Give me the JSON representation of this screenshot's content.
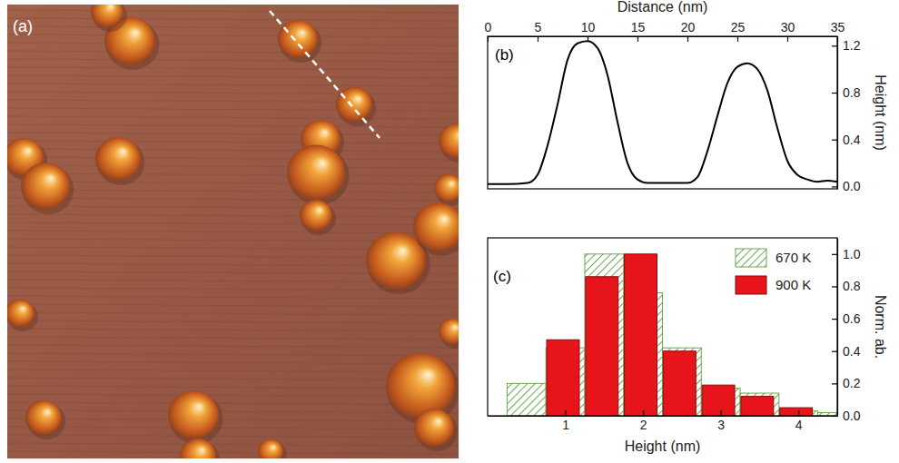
{
  "chart_data": [
    {
      "type": "image",
      "label": "(a)"
    },
    {
      "type": "line",
      "label": "(b)",
      "x_label": "Distance (nm)",
      "y_label": "Height (nm)",
      "x": [
        0,
        2,
        4,
        5,
        6,
        7,
        8,
        9,
        10,
        11,
        12,
        13,
        14,
        15,
        16,
        18,
        20,
        21,
        22,
        23,
        24,
        25,
        26,
        27,
        28,
        29,
        30,
        31,
        32,
        33,
        34,
        35
      ],
      "values": [
        0.02,
        0.02,
        0.03,
        0.1,
        0.35,
        0.7,
        1.08,
        1.22,
        1.24,
        1.18,
        0.95,
        0.55,
        0.2,
        0.06,
        0.03,
        0.03,
        0.03,
        0.08,
        0.3,
        0.6,
        0.88,
        1.02,
        1.05,
        1.0,
        0.82,
        0.5,
        0.22,
        0.1,
        0.06,
        0.04,
        0.05,
        0.04
      ],
      "color": "#000000",
      "xlim": [
        0,
        35
      ],
      "xticks": [
        0,
        5,
        10,
        15,
        20,
        25,
        30,
        35
      ],
      "ylim": [
        -0.02,
        1.28
      ],
      "yticks": [
        {
          "value": 0,
          "label": "0.0"
        },
        {
          "value": 0.4,
          "label": "0.4"
        },
        {
          "value": 0.8,
          "label": "0.8"
        },
        {
          "value": 1.2,
          "label": "1.2"
        }
      ]
    },
    {
      "type": "histogram",
      "label": "(c)",
      "x_label": "Height (nm)",
      "y_label": "Norm. ab.",
      "bins": [
        0.25,
        0.75,
        1.25,
        1.75,
        2.25,
        2.75,
        3.25,
        3.75,
        4.25,
        4.75
      ],
      "series": [
        {
          "name": "670 K",
          "color": "#6aa84f",
          "marker": "hatch",
          "values": [
            0.2,
            0.42,
            1.0,
            0.76,
            0.42,
            0.17,
            0.14,
            0.03,
            0.02
          ]
        },
        {
          "name": "900 K",
          "color": "#e8141c",
          "marker": "solid",
          "values": [
            0,
            0.47,
            0.86,
            1.0,
            0.4,
            0.19,
            0.12,
            0.05,
            0
          ]
        }
      ],
      "legend": "upper right",
      "xlim": [
        0,
        4.5
      ],
      "xticks": [
        1,
        2,
        3,
        4
      ],
      "ylim": [
        0,
        1.1
      ],
      "yticks": [
        {
          "value": 0,
          "label": "0.0"
        },
        {
          "value": 0.2,
          "label": "0.2"
        },
        {
          "value": 0.4,
          "label": "0.4"
        },
        {
          "value": 0.6,
          "label": "0.6"
        },
        {
          "value": 0.8,
          "label": "0.8"
        },
        {
          "value": 1.0,
          "label": "1.0"
        }
      ]
    }
  ]
}
